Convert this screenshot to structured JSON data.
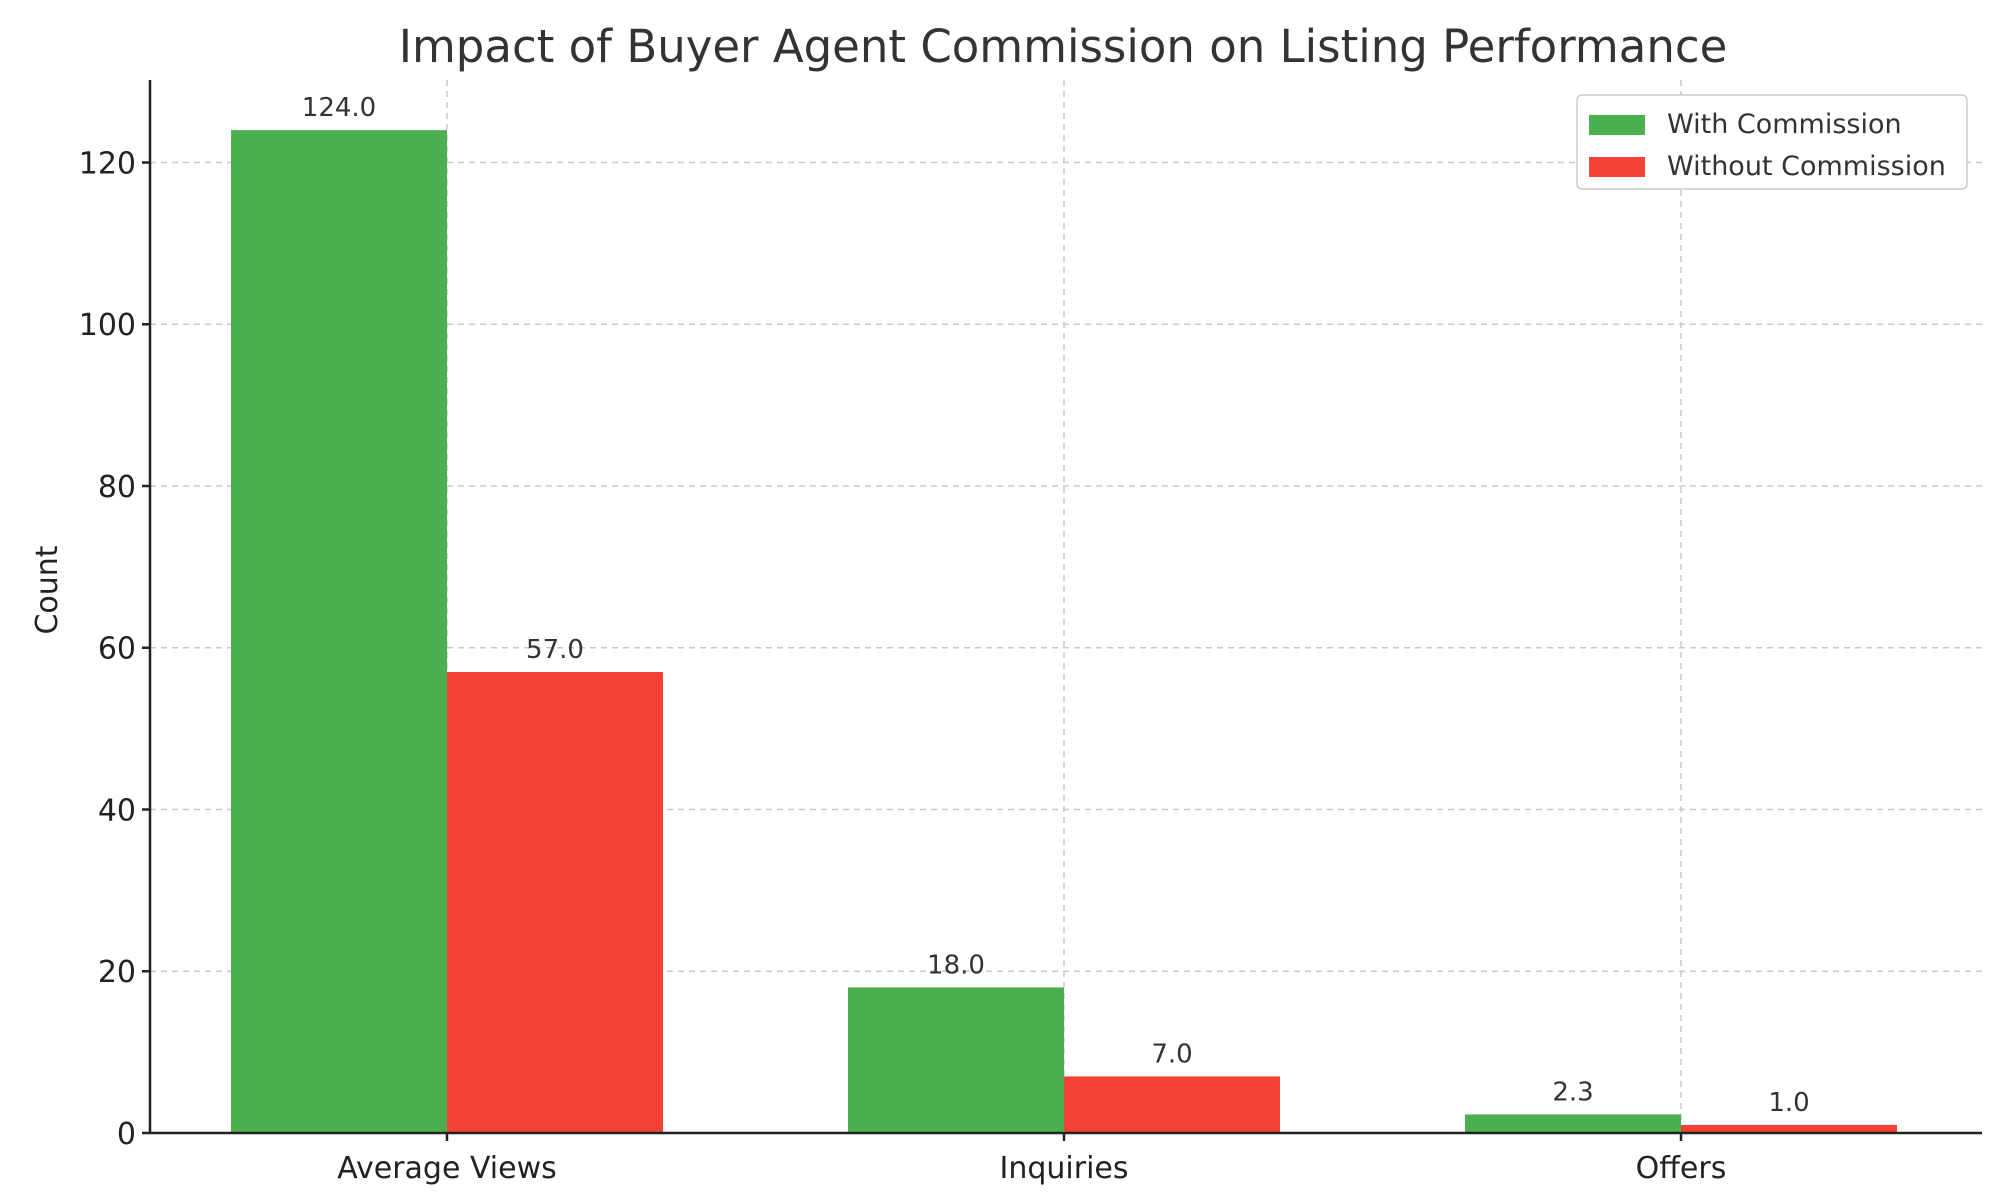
{
  "chart_data": {
    "type": "bar",
    "title": "Impact of Buyer Agent Commission on Listing Performance",
    "xlabel": "",
    "ylabel": "Count",
    "categories": [
      "Average Views",
      "Inquiries",
      "Offers"
    ],
    "series": [
      {
        "name": "With Commission",
        "values": [
          124.0,
          18.0,
          2.3
        ],
        "color": "#4caf50",
        "labels": [
          "124.0",
          "18.0",
          "2.3"
        ]
      },
      {
        "name": "Without Commission",
        "values": [
          57.0,
          7.0,
          1.0
        ],
        "color": "#f44336",
        "labels": [
          "57.0",
          "7.0",
          "1.0"
        ]
      }
    ],
    "ylim": [
      0,
      130.2
    ],
    "yticks": [
      0,
      20,
      40,
      60,
      80,
      100,
      120
    ],
    "grid": true,
    "legend_position": "top-right"
  }
}
